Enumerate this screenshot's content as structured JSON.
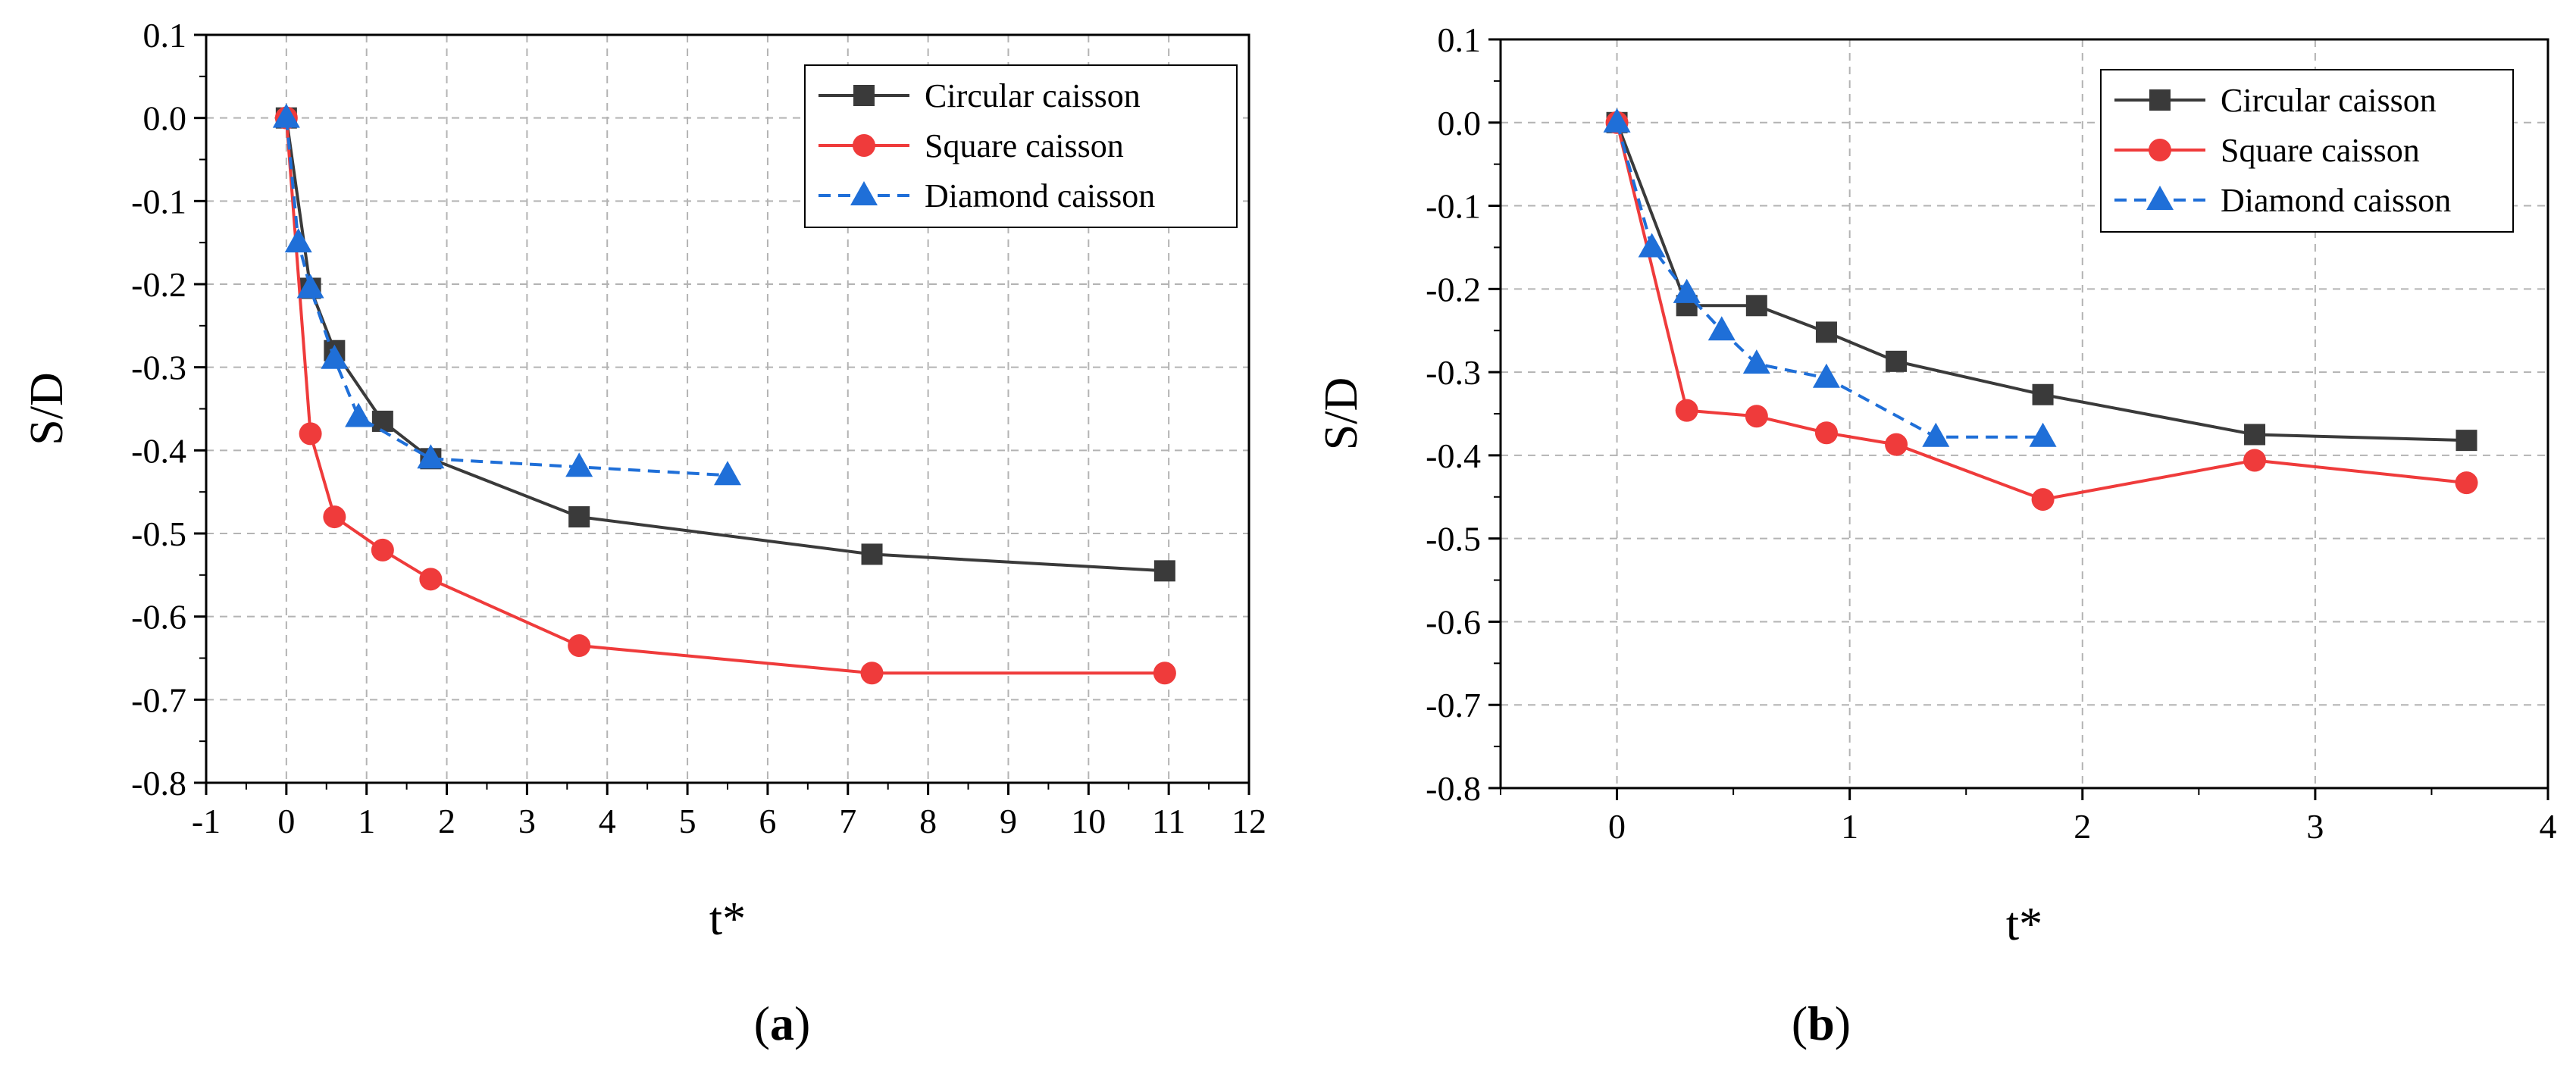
{
  "chart_data": [
    {
      "type": "line",
      "panel_label": "a",
      "panel_label_open": "(",
      "panel_label_close": ")",
      "xlabel": "t*",
      "ylabel": "S/D",
      "xlim": [
        -1,
        12
      ],
      "ylim": [
        -0.8,
        0.1
      ],
      "xticks": [
        -1,
        0,
        1,
        2,
        3,
        4,
        5,
        6,
        7,
        8,
        9,
        10,
        11,
        12
      ],
      "xtick_labels": [
        "-1",
        "0",
        "1",
        "2",
        "3",
        "4",
        "5",
        "6",
        "7",
        "8",
        "9",
        "10",
        "11",
        "12"
      ],
      "yticks": [
        -0.8,
        -0.7,
        -0.6,
        -0.5,
        -0.4,
        -0.3,
        -0.2,
        -0.1,
        0.0,
        0.1
      ],
      "ytick_labels": [
        "-0.8",
        "-0.7",
        "-0.6",
        "-0.5",
        "-0.4",
        "-0.3",
        "-0.2",
        "-0.1",
        "0.0",
        "0.1"
      ],
      "grid": true,
      "legend_position": "top-right",
      "series": [
        {
          "name": "Circular caisson",
          "color": "#3a3a3a",
          "marker": "square",
          "line": "solid",
          "x": [
            0,
            0.3,
            0.6,
            1.2,
            1.8,
            3.65,
            7.3,
            10.95
          ],
          "y": [
            0,
            -0.205,
            -0.28,
            -0.365,
            -0.41,
            -0.48,
            -0.525,
            -0.545
          ]
        },
        {
          "name": "Square caisson",
          "color": "#ef3b3b",
          "marker": "circle",
          "line": "solid",
          "x": [
            0,
            0.3,
            0.6,
            1.2,
            1.8,
            3.65,
            7.3,
            10.95
          ],
          "y": [
            0,
            -0.38,
            -0.48,
            -0.52,
            -0.555,
            -0.635,
            -0.668,
            -0.668
          ]
        },
        {
          "name": "Diamond caisson",
          "color": "#1f6fd8",
          "marker": "triangle",
          "line": "dashed",
          "x": [
            0,
            0.15,
            0.3,
            0.6,
            0.9,
            1.8,
            3.65,
            5.5
          ],
          "y": [
            0,
            -0.15,
            -0.205,
            -0.29,
            -0.36,
            -0.41,
            -0.42,
            -0.43
          ]
        }
      ]
    },
    {
      "type": "line",
      "panel_label": "b",
      "panel_label_open": "(",
      "panel_label_close": ")",
      "xlabel": "t*",
      "ylabel": "S/D",
      "xlim": [
        -0.5,
        4
      ],
      "ylim": [
        -0.8,
        0.1
      ],
      "xticks": [
        0,
        1,
        2,
        3,
        4
      ],
      "xtick_labels": [
        "0",
        "1",
        "2",
        "3",
        "4"
      ],
      "yticks": [
        -0.8,
        -0.7,
        -0.6,
        -0.5,
        -0.4,
        -0.3,
        -0.2,
        -0.1,
        0.0,
        0.1
      ],
      "ytick_labels": [
        "-0.8",
        "-0.7",
        "-0.6",
        "-0.5",
        "-0.4",
        "-0.3",
        "-0.2",
        "-0.1",
        "0.0",
        "0.1"
      ],
      "grid": true,
      "legend_position": "top-right",
      "series": [
        {
          "name": "Circular caisson",
          "color": "#3a3a3a",
          "marker": "square",
          "line": "solid",
          "x": [
            0,
            0.3,
            0.6,
            0.9,
            1.2,
            1.83,
            2.74,
            3.65
          ],
          "y": [
            0,
            -0.22,
            -0.22,
            -0.252,
            -0.287,
            -0.327,
            -0.375,
            -0.382
          ]
        },
        {
          "name": "Square caisson",
          "color": "#ef3b3b",
          "marker": "circle",
          "line": "solid",
          "x": [
            0,
            0.3,
            0.6,
            0.9,
            1.2,
            1.83,
            2.74,
            3.65
          ],
          "y": [
            0,
            -0.346,
            -0.353,
            -0.373,
            -0.387,
            -0.453,
            -0.406,
            -0.433
          ]
        },
        {
          "name": "Diamond caisson",
          "color": "#1f6fd8",
          "marker": "triangle",
          "line": "dashed",
          "x": [
            0,
            0.15,
            0.3,
            0.45,
            0.6,
            0.9,
            1.37,
            1.83
          ],
          "y": [
            0,
            -0.15,
            -0.205,
            -0.25,
            -0.29,
            -0.307,
            -0.378,
            -0.378
          ]
        }
      ]
    }
  ]
}
